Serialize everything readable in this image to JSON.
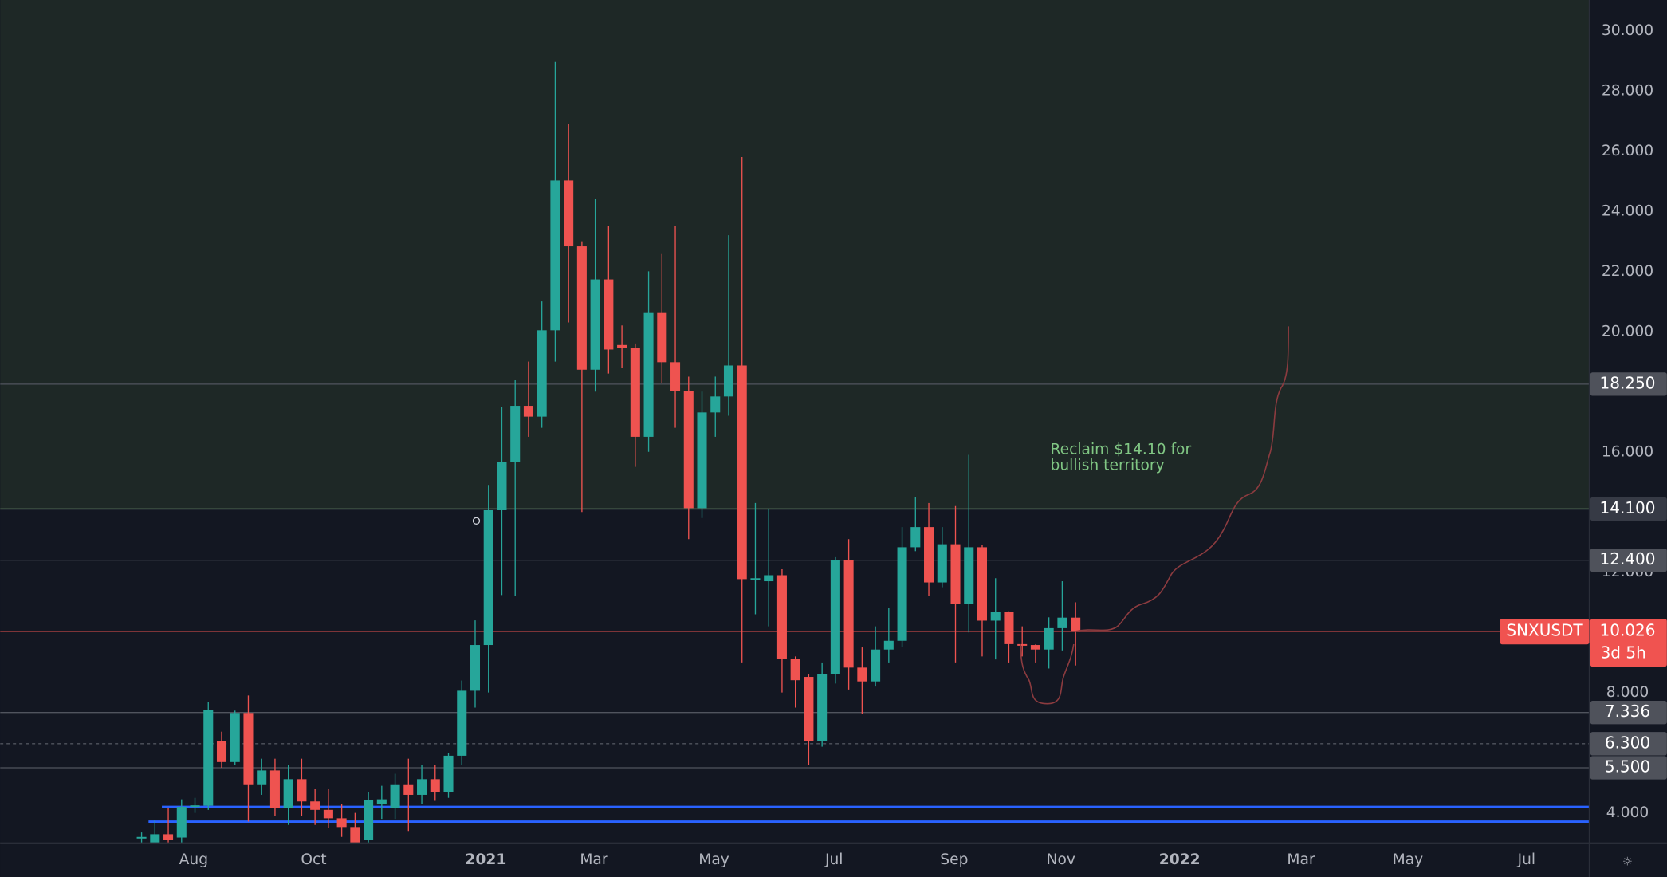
{
  "chart_data": {
    "type": "candlestick",
    "symbol": "SNXUSDT",
    "up_color": "#26a69a",
    "down_color": "#ef5350",
    "xlim": [
      -10.6,
      108.5
    ],
    "ylim": [
      3.0,
      31.02
    ],
    "xticks": [
      {
        "value": 3.9,
        "label": "Aug"
      },
      {
        "value": 12.9,
        "label": "Oct"
      },
      {
        "value": 25.8,
        "label": "2021"
      },
      {
        "value": 33.9,
        "label": "Mar"
      },
      {
        "value": 42.9,
        "label": "May"
      },
      {
        "value": 51.9,
        "label": "Jul"
      },
      {
        "value": 60.9,
        "label": "Sep"
      },
      {
        "value": 68.9,
        "label": "Nov"
      },
      {
        "value": 77.8,
        "label": "2022"
      },
      {
        "value": 86.9,
        "label": "Mar"
      },
      {
        "value": 94.9,
        "label": "May"
      },
      {
        "value": 103.8,
        "label": "Jul"
      }
    ],
    "yticks": [
      {
        "value": 4,
        "label": "4.000"
      },
      {
        "value": 8,
        "label": "8.000"
      },
      {
        "value": 12,
        "label": "12.000"
      },
      {
        "value": 16,
        "label": "16.000"
      },
      {
        "value": 20,
        "label": "20.000"
      },
      {
        "value": 22,
        "label": "22.000"
      },
      {
        "value": 24,
        "label": "24.000"
      },
      {
        "value": 26,
        "label": "26.000"
      },
      {
        "value": 28,
        "label": "28.000"
      },
      {
        "value": 30,
        "label": "30.000"
      }
    ],
    "shaded_above": 14.1,
    "shade_color": "#1e2826",
    "levels": [
      {
        "value": 18.25,
        "label": "18.250",
        "color": "#50545e",
        "style": "solid"
      },
      {
        "value": 14.1,
        "label": "14.100",
        "color": "#7da37f",
        "style": "solid"
      },
      {
        "value": 12.4,
        "label": "12.400",
        "color": "#50545e",
        "style": "solid"
      },
      {
        "value": 7.336,
        "label": "7.336",
        "color": "#50545e",
        "style": "solid"
      },
      {
        "value": 6.3,
        "label": "6.300",
        "color": "#50545e",
        "style": "dashed"
      },
      {
        "value": 5.5,
        "label": "5.500",
        "color": "#50545e",
        "style": "solid"
      }
    ],
    "current_price": {
      "value": 10.026,
      "label": "10.026",
      "countdown": "3d 5h",
      "color": "#f05350"
    },
    "support_lines": [
      {
        "value": 4.2,
        "start": 2,
        "color": "#2962ff"
      },
      {
        "value": 3.71,
        "start": 1,
        "color": "#2962ff"
      }
    ],
    "annotation": [
      "Reclaim $14.10 for",
      "bullish territory"
    ],
    "open": [
      3.2,
      3.0,
      3.29,
      3.18,
      4.2,
      4.24,
      6.4,
      5.69,
      7.32,
      4.95,
      5.41,
      4.17,
      5.12,
      4.38,
      4.1,
      3.82,
      3.53,
      3.1,
      4.28,
      4.17,
      4.95,
      4.6,
      5.12,
      4.7,
      5.9,
      8.06,
      9.58,
      14.06,
      15.65,
      17.53,
      17.17,
      20.04,
      25.02,
      22.83,
      18.73,
      21.73,
      19.55,
      19.45,
      16.5,
      20.64,
      18.98,
      18.02,
      14.13,
      17.31,
      17.84,
      18.87,
      11.77,
      11.7,
      11.9,
      9.12,
      8.52,
      6.4,
      8.62,
      12.4,
      8.83,
      8.37,
      9.43,
      9.72,
      12.83,
      13.5,
      11.66,
      12.93,
      10.95,
      12.83,
      10.39,
      10.67,
      9.61,
      9.58,
      9.43,
      10.14,
      10.49
    ],
    "high": [
      3.35,
      3.75,
      4.17,
      4.45,
      4.5,
      7.7,
      6.7,
      7.4,
      7.9,
      5.8,
      5.8,
      5.6,
      5.8,
      4.8,
      4.8,
      4.3,
      4.0,
      4.7,
      4.9,
      5.3,
      5.8,
      5.6,
      5.6,
      6.0,
      8.4,
      10.4,
      14.9,
      17.5,
      18.4,
      19.0,
      21.0,
      28.96,
      26.9,
      23.0,
      24.4,
      23.5,
      20.2,
      19.6,
      22.0,
      22.6,
      23.5,
      18.5,
      18.0,
      18.5,
      23.2,
      25.8,
      14.3,
      14.1,
      12.1,
      9.2,
      8.6,
      9.0,
      12.5,
      13.1,
      9.5,
      10.2,
      10.8,
      13.5,
      14.5,
      14.3,
      13.5,
      14.2,
      15.9,
      12.9,
      11.8,
      10.7,
      10.2,
      9.6,
      10.5,
      11.7,
      11.0
    ],
    "low": [
      3.0,
      3.0,
      3.0,
      3.0,
      4.0,
      4.1,
      5.5,
      5.6,
      3.71,
      4.6,
      3.9,
      3.6,
      3.9,
      3.6,
      3.5,
      3.2,
      3.0,
      3.0,
      3.8,
      3.8,
      3.4,
      4.3,
      4.4,
      4.5,
      5.6,
      7.5,
      8.0,
      11.24,
      11.2,
      16.5,
      16.8,
      19.0,
      20.3,
      14.0,
      18.0,
      18.6,
      18.8,
      15.5,
      16.0,
      18.3,
      16.8,
      13.1,
      13.8,
      16.5,
      17.2,
      9.0,
      10.6,
      10.2,
      8.0,
      7.5,
      5.6,
      6.2,
      8.3,
      8.1,
      7.3,
      8.2,
      9.0,
      9.5,
      12.7,
      11.2,
      11.5,
      9.0,
      10.0,
      9.2,
      9.1,
      9.0,
      9.2,
      9.0,
      8.8,
      9.4,
      8.9
    ],
    "close": [
      3.2,
      3.29,
      3.11,
      4.2,
      4.25,
      7.42,
      5.69,
      7.32,
      4.95,
      5.41,
      4.17,
      5.12,
      4.38,
      4.1,
      3.82,
      3.53,
      3.0,
      4.42,
      4.45,
      4.95,
      4.6,
      5.12,
      4.7,
      5.9,
      8.06,
      9.58,
      14.06,
      15.65,
      17.53,
      17.17,
      20.04,
      25.02,
      22.83,
      18.73,
      21.73,
      19.4,
      19.45,
      16.5,
      20.64,
      18.98,
      18.02,
      14.13,
      17.31,
      17.84,
      18.87,
      11.77,
      11.8,
      11.9,
      9.12,
      8.41,
      6.4,
      8.62,
      12.4,
      8.83,
      8.37,
      9.43,
      9.72,
      12.83,
      13.5,
      11.66,
      12.93,
      10.95,
      12.83,
      10.39,
      10.67,
      9.61,
      9.6,
      9.43,
      10.14,
      10.49,
      10.026
    ]
  }
}
